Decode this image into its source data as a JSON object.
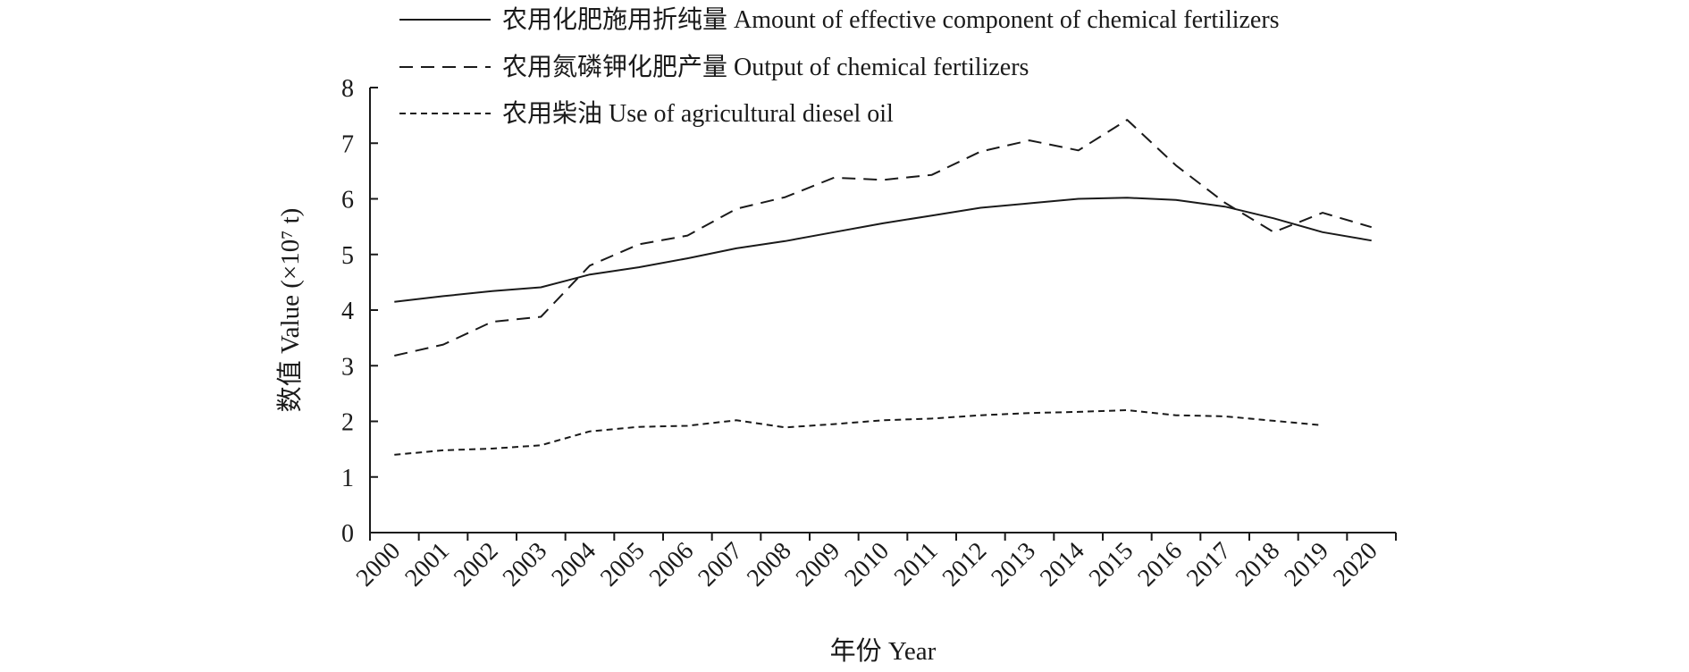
{
  "chart_data": {
    "type": "line",
    "title": "",
    "xlabel": "年份 Year",
    "ylabel": "数值 Value (×10⁷ t)",
    "ylim": [
      0,
      8
    ],
    "yticks": [
      "0",
      "1",
      "2",
      "3",
      "4",
      "5",
      "6",
      "7",
      "8"
    ],
    "grid": false,
    "legend_position": "top",
    "categories": [
      "2000",
      "2001",
      "2002",
      "2003",
      "2004",
      "2005",
      "2006",
      "2007",
      "2008",
      "2009",
      "2010",
      "2011",
      "2012",
      "2013",
      "2014",
      "2015",
      "2016",
      "2017",
      "2018",
      "2019",
      "2020"
    ],
    "series": [
      {
        "name": "农用化肥施用折纯量 Amount of effective component of chemical fertilizers",
        "line_style": "solid",
        "values": [
          4.15,
          4.25,
          4.34,
          4.41,
          4.64,
          4.77,
          4.93,
          5.11,
          5.24,
          5.4,
          5.56,
          5.7,
          5.84,
          5.92,
          6.0,
          6.02,
          5.98,
          5.86,
          5.65,
          5.4,
          5.25
        ]
      },
      {
        "name": "农用氮磷钾化肥产量 Output of chemical fertilizers",
        "line_style": "long-dash",
        "values": [
          3.18,
          3.38,
          3.79,
          3.88,
          4.8,
          5.18,
          5.34,
          5.82,
          6.03,
          6.38,
          6.34,
          6.43,
          6.85,
          7.05,
          6.87,
          7.42,
          6.6,
          5.93,
          5.4,
          5.75,
          5.49
        ]
      },
      {
        "name": "农用柴油 Use of agricultural diesel oil",
        "line_style": "short-dash",
        "values": [
          1.4,
          1.48,
          1.51,
          1.57,
          1.82,
          1.9,
          1.92,
          2.02,
          1.89,
          1.95,
          2.02,
          2.05,
          2.11,
          2.15,
          2.17,
          2.2,
          2.11,
          2.09,
          2.01,
          1.93,
          null
        ]
      }
    ]
  }
}
